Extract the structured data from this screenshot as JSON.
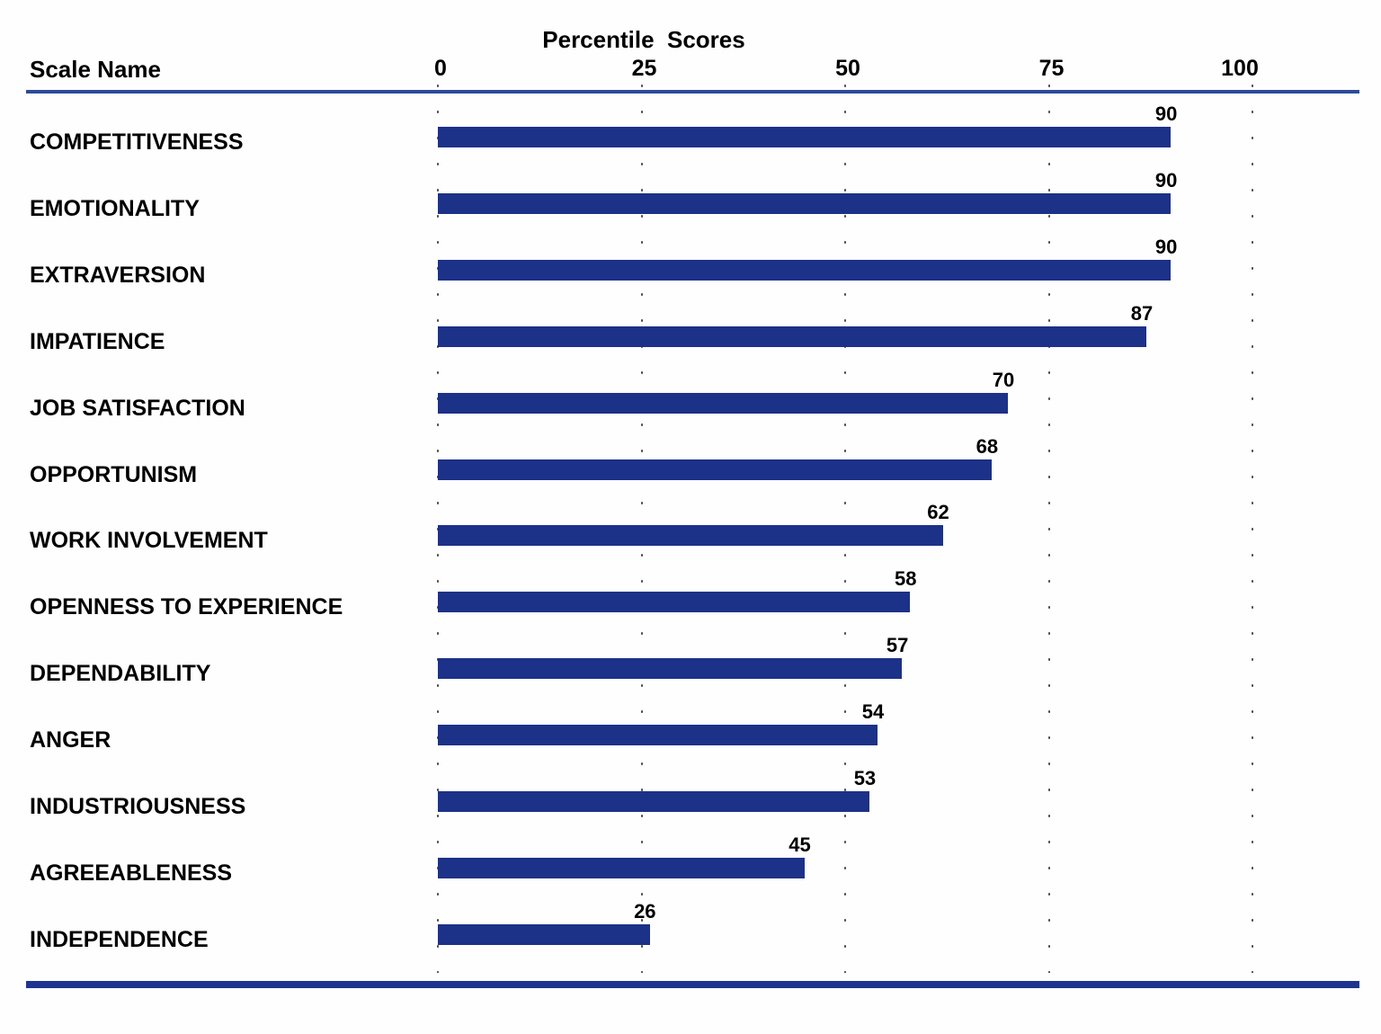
{
  "header": {
    "title": "Percentile  Scores",
    "scale_column_label": "Scale Name"
  },
  "chart_data": {
    "type": "bar",
    "orientation": "horizontal",
    "title": "Percentile  Scores",
    "xlabel": "Percentile  Scores",
    "ylabel": "Scale Name",
    "x_ticks": [
      0,
      25,
      50,
      75,
      100
    ],
    "xlim": [
      0,
      100
    ],
    "grid": "dotted vertical gridlines at each tick",
    "legend": "none",
    "value_labels_shown": true,
    "bar_color": "#1c3188",
    "top_rule_color": "#2d4b9a",
    "bottom_rule_color": "#1e3590",
    "grid_dot_color": "#4a4a4a",
    "text_color": "#000000",
    "categories": [
      "COMPETITIVENESS",
      "EMOTIONALITY",
      "EXTRAVERSION",
      "IMPATIENCE",
      "JOB SATISFACTION",
      "OPPORTUNISM",
      "WORK INVOLVEMENT",
      "OPENNESS TO EXPERIENCE",
      "DEPENDABILITY",
      "ANGER",
      "INDUSTRIOUSNESS",
      "AGREEABLENESS",
      "INDEPENDENCE"
    ],
    "values": [
      90,
      90,
      90,
      87,
      70,
      68,
      62,
      58,
      57,
      54,
      53,
      45,
      26
    ]
  }
}
